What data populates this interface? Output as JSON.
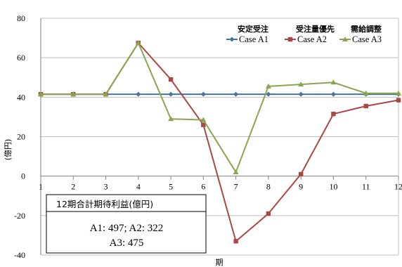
{
  "chart_data": {
    "type": "line",
    "title": "",
    "xlabel": "期",
    "ylabel": "(億円)",
    "x": [
      1,
      2,
      3,
      4,
      5,
      6,
      7,
      8,
      9,
      10,
      11,
      12
    ],
    "xlim": [
      1,
      12
    ],
    "ylim": [
      -40,
      80
    ],
    "yticks": [
      -40,
      -20,
      0,
      20,
      40,
      60,
      80
    ],
    "grid": "horizontal",
    "legend_position": "top-right",
    "legend_headers": [
      "安定受注",
      "受注量優先",
      "需給調整"
    ],
    "series": [
      {
        "name": "Case A1",
        "color": "#4572A7",
        "marker": "diamond",
        "values": [
          41.5,
          41.5,
          41.5,
          41.5,
          41.5,
          41.5,
          41.5,
          41.5,
          41.5,
          41.5,
          41.5,
          41.5
        ]
      },
      {
        "name": "Case A2",
        "color": "#AA4643",
        "marker": "square",
        "values": [
          41.5,
          41.5,
          41.5,
          67.5,
          49,
          26,
          -33,
          -19,
          1,
          31.5,
          35.5,
          38.5
        ]
      },
      {
        "name": "Case A3",
        "color": "#89A54E",
        "marker": "triangle",
        "values": [
          41.5,
          41.5,
          41.5,
          67.5,
          29,
          28.5,
          2,
          45.5,
          46.5,
          47.5,
          42,
          42
        ]
      }
    ]
  },
  "annotation": {
    "title": "12期合計期待利益(億円)",
    "line1": "A1: 497;  A2: 322",
    "line2": "A3: 475"
  }
}
